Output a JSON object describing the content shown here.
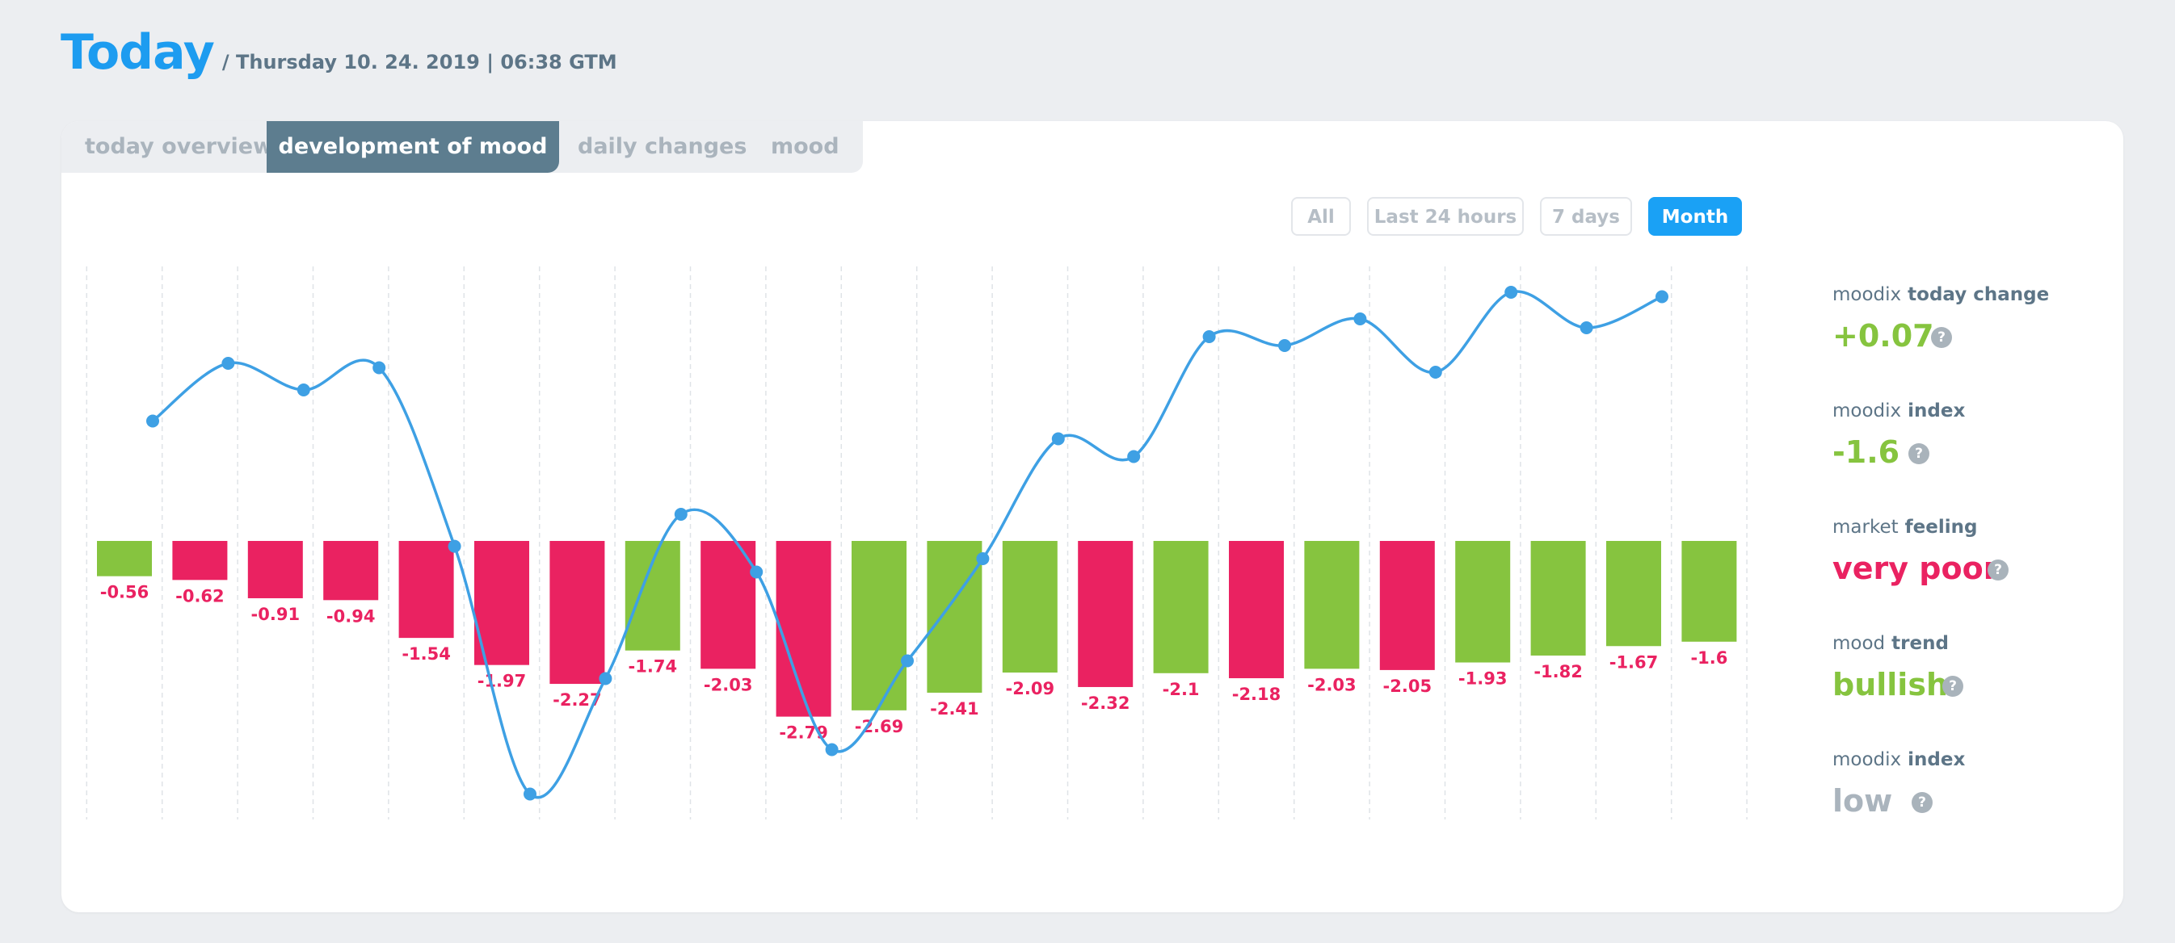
{
  "header": {
    "title": "Today",
    "subtitle": "/ Thursday 10. 24. 2019 | 06:38 GTM"
  },
  "tabs": [
    {
      "label": "today overview",
      "active": false
    },
    {
      "label": "development of mood",
      "active": true
    },
    {
      "label": "daily changes",
      "active": false
    },
    {
      "label": "mood",
      "active": false
    }
  ],
  "filters": [
    {
      "label": "All",
      "active": false
    },
    {
      "label": "Last 24 hours",
      "active": false
    },
    {
      "label": "7 days",
      "active": false
    },
    {
      "label": "Month",
      "active": true
    }
  ],
  "stats": [
    {
      "label_prefix": "moodix",
      "label_bold": "today change",
      "value": "+0.07",
      "color": "#86c43f",
      "help": "?"
    },
    {
      "label_prefix": "moodix",
      "label_bold": "index",
      "value": "-1.6",
      "color": "#86c43f",
      "help": "?"
    },
    {
      "label_prefix": "market",
      "label_bold": "feeling",
      "value": "very poor",
      "color": "#ea2261",
      "help": "?"
    },
    {
      "label_prefix": "mood",
      "label_bold": "trend",
      "value": "bullish",
      "color": "#86c43f",
      "help": "?"
    },
    {
      "label_prefix": "moodix",
      "label_bold": "index",
      "value": "low",
      "color": "#aab4bd",
      "help": "?"
    }
  ],
  "colors": {
    "positive": "#86c43f",
    "negative": "#ea2261",
    "line": "#3ea0e4",
    "accent": "#1aa1f5"
  },
  "chart_data": {
    "type": "bar",
    "bars": {
      "values": [
        -0.56,
        -0.62,
        -0.91,
        -0.94,
        -1.54,
        -1.97,
        -2.27,
        -1.74,
        -2.03,
        -2.79,
        -2.69,
        -2.41,
        -2.09,
        -2.32,
        -2.1,
        -2.18,
        -2.03,
        -2.05,
        -1.93,
        -1.82,
        -1.67,
        -1.6
      ],
      "labels": [
        "-0.56",
        "-0.62",
        "-0.91",
        "-0.94",
        "-1.54",
        "-1.97",
        "-2.27",
        "-1.74",
        "-2.03",
        "-2.79",
        "-2.69",
        "-2.41",
        "-2.09",
        "-2.32",
        "-2.1",
        "-2.18",
        "-2.03",
        "-2.05",
        "-1.93",
        "-1.82",
        "-1.67",
        "-1.6"
      ],
      "direction": [
        "up",
        "down",
        "down",
        "down",
        "down",
        "down",
        "down",
        "up",
        "down",
        "down",
        "up",
        "up",
        "up",
        "down",
        "up",
        "down",
        "up",
        "down",
        "up",
        "up",
        "up",
        "up"
      ]
    },
    "line": {
      "values": [
        1.35,
        2.0,
        1.7,
        1.95,
        -0.06,
        -2.85,
        -1.55,
        0.3,
        -0.35,
        -2.35,
        -1.35,
        -0.2,
        1.15,
        0.95,
        2.3,
        2.2,
        2.5,
        1.9,
        2.8,
        2.4,
        2.75
      ]
    },
    "ylim": [
      -3.0,
      3.0
    ],
    "grid": "vertical-dashed"
  }
}
